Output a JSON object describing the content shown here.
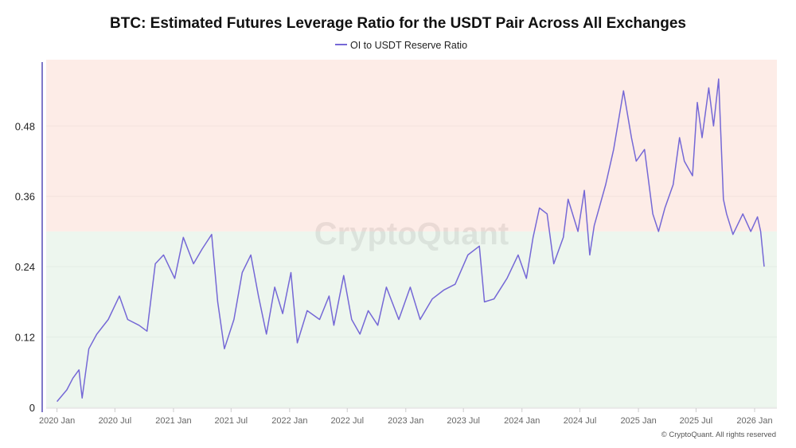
{
  "chart_data": {
    "type": "line",
    "title": "BTC: Estimated Futures Leverage Ratio for the USDT Pair Across All Exchanges",
    "xlabel": "",
    "ylabel": "",
    "ylim": [
      0,
      0.593
    ],
    "xlim": [
      "2019-11-28",
      "2026-03-12"
    ],
    "grid": true,
    "legend_placement": "top-center",
    "y_ticks": [
      "0",
      "0.12",
      "0.24",
      "0.36",
      "0.48"
    ],
    "y_tick_values": [
      0,
      0.12,
      0.24,
      0.36,
      0.48
    ],
    "x_ticks": [
      "2020 Jan",
      "2020 Jul",
      "2021 Jan",
      "2021 Jul",
      "2022 Jan",
      "2022 Jul",
      "2023 Jan",
      "2023 Jul",
      "2024 Jan",
      "2024 Jul",
      "2025 Jan",
      "2025 Jul",
      "2026 Jan"
    ],
    "x_tick_dates": [
      "2020-01-01",
      "2020-07-01",
      "2021-01-01",
      "2021-07-01",
      "2022-01-01",
      "2022-07-01",
      "2023-01-01",
      "2023-07-01",
      "2024-01-01",
      "2024-07-01",
      "2025-01-01",
      "2025-07-01",
      "2026-01-01"
    ],
    "zones": [
      {
        "from": 0.3,
        "to": 0.593,
        "color": "#fdece7"
      },
      {
        "from": 0,
        "to": 0.3,
        "color": "#edf6ee"
      }
    ],
    "watermark": "CryptoQuant",
    "series": [
      {
        "name": "OI to USDT Reserve Ratio",
        "color": "#7568d6",
        "x": [
          "2020-01-01",
          "2020-02-01",
          "2020-02-20",
          "2020-03-10",
          "2020-03-20",
          "2020-04-10",
          "2020-05-05",
          "2020-06-10",
          "2020-07-15",
          "2020-08-10",
          "2020-09-15",
          "2020-10-10",
          "2020-11-05",
          "2020-12-01",
          "2021-01-05",
          "2021-02-01",
          "2021-03-05",
          "2021-04-01",
          "2021-05-01",
          "2021-05-20",
          "2021-06-10",
          "2021-07-10",
          "2021-08-05",
          "2021-09-01",
          "2021-09-25",
          "2021-10-20",
          "2021-11-15",
          "2021-12-10",
          "2022-01-05",
          "2022-01-25",
          "2022-02-25",
          "2022-04-05",
          "2022-05-05",
          "2022-05-20",
          "2022-06-20",
          "2022-07-15",
          "2022-08-10",
          "2022-09-05",
          "2022-10-05",
          "2022-11-01",
          "2022-12-10",
          "2023-01-15",
          "2023-02-15",
          "2023-03-25",
          "2023-04-30",
          "2023-06-05",
          "2023-07-15",
          "2023-08-20",
          "2023-09-05",
          "2023-10-05",
          "2023-11-15",
          "2023-12-20",
          "2024-01-15",
          "2024-02-05",
          "2024-02-25",
          "2024-03-20",
          "2024-04-10",
          "2024-05-10",
          "2024-05-25",
          "2024-06-25",
          "2024-07-15",
          "2024-08-01",
          "2024-08-15",
          "2024-09-20",
          "2024-10-15",
          "2024-11-15",
          "2024-12-10",
          "2024-12-25",
          "2025-01-20",
          "2025-02-15",
          "2025-03-05",
          "2025-03-25",
          "2025-04-20",
          "2025-05-10",
          "2025-05-25",
          "2025-06-20",
          "2025-07-05",
          "2025-07-20",
          "2025-08-10",
          "2025-08-25",
          "2025-09-10",
          "2025-09-25",
          "2025-10-05",
          "2025-10-25",
          "2025-11-25",
          "2025-12-20",
          "2026-01-10",
          "2026-01-20",
          "2026-01-31"
        ],
        "values": [
          0.01,
          0.03,
          0.05,
          0.064,
          0.016,
          0.1,
          0.125,
          0.15,
          0.19,
          0.15,
          0.14,
          0.13,
          0.245,
          0.26,
          0.22,
          0.29,
          0.245,
          0.27,
          0.295,
          0.18,
          0.1,
          0.15,
          0.23,
          0.26,
          0.19,
          0.125,
          0.205,
          0.16,
          0.23,
          0.11,
          0.165,
          0.15,
          0.19,
          0.14,
          0.225,
          0.15,
          0.125,
          0.165,
          0.14,
          0.205,
          0.15,
          0.205,
          0.15,
          0.185,
          0.2,
          0.21,
          0.26,
          0.275,
          0.18,
          0.185,
          0.22,
          0.26,
          0.22,
          0.29,
          0.34,
          0.33,
          0.245,
          0.29,
          0.355,
          0.3,
          0.37,
          0.26,
          0.31,
          0.38,
          0.44,
          0.54,
          0.46,
          0.42,
          0.44,
          0.33,
          0.3,
          0.34,
          0.38,
          0.46,
          0.42,
          0.395,
          0.52,
          0.46,
          0.545,
          0.48,
          0.56,
          0.355,
          0.33,
          0.295,
          0.33,
          0.3,
          0.325,
          0.3,
          0.24
        ]
      }
    ]
  },
  "footer": {
    "copyright": "© CryptoQuant. All rights reserved"
  }
}
